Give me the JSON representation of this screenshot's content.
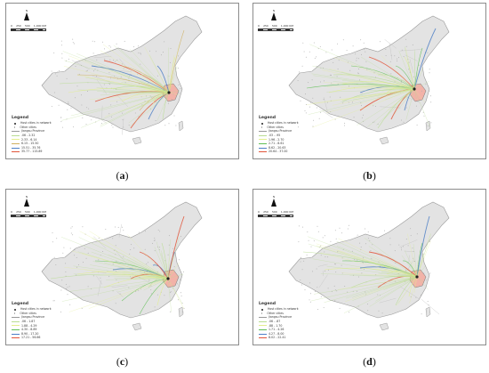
{
  "panels": [
    {
      "label": "a",
      "legend": {
        "title": "Legend",
        "node_label": "Host cities in network",
        "other_label": "Other cities",
        "border_label": "Jiangsu Province",
        "classes": [
          {
            "range": ".06 - 2.32",
            "color": "#b9dd92"
          },
          {
            "range": "2.33 - 6.14",
            "color": "#e3ee8e"
          },
          {
            "range": "6.15 - 15.50",
            "color": "#d0b060"
          },
          {
            "range": "15.51 - 35.76",
            "color": "#4e7fc6"
          },
          {
            "range": "35.77 - 115.89",
            "color": "#e2553a"
          }
        ]
      }
    },
    {
      "label": "b",
      "legend": {
        "title": "Legend",
        "node_label": "Host cities in network",
        "other_label": "Other cities",
        "border_label": "Jiangsu Province",
        "classes": [
          {
            "range": ".03 - .95",
            "color": "#b9dd92"
          },
          {
            "range": "1.96 - 2.70",
            "color": "#e3ee8e"
          },
          {
            "range": "2.71 - 8.61",
            "color": "#5fbf55"
          },
          {
            "range": "8.62 - 20.63",
            "color": "#4e7fc6"
          },
          {
            "range": "20.64 - 37.00",
            "color": "#e2553a"
          }
        ]
      }
    },
    {
      "label": "c",
      "legend": {
        "title": "Legend",
        "node_label": "Host cities in network",
        "other_label": "Other cities",
        "border_label": "Jiangsu Province",
        "classes": [
          {
            "range": ".06 - 1.87",
            "color": "#b9dd92"
          },
          {
            "range": "1.88 - 4.29",
            "color": "#e3ee8e"
          },
          {
            "range": "4.30 - 8.89",
            "color": "#5fbf55"
          },
          {
            "range": "8.90 - 17.20",
            "color": "#4e7fc6"
          },
          {
            "range": "17.21 - 56.66",
            "color": "#e2553a"
          }
        ]
      }
    },
    {
      "label": "d",
      "legend": {
        "title": "Legend",
        "node_label": "Host cities in network",
        "other_label": "Other cities",
        "border_label": "Jiangsu Province",
        "classes": [
          {
            "range": ".06 - .87",
            "color": "#b9dd92"
          },
          {
            "range": ".88 - 1.70",
            "color": "#e3ee8e"
          },
          {
            "range": "1.71 - 4.26",
            "color": "#5fbf55"
          },
          {
            "range": "4.27 - 8.00",
            "color": "#4e7fc6"
          },
          {
            "range": "8.02 - 22.41",
            "color": "#e2553a"
          }
        ]
      }
    }
  ],
  "map_common": {
    "north_letter": "N",
    "scale_ticks": [
      "0",
      "250",
      "500",
      "1,000 KM"
    ],
    "land_color": "#e3e3e3",
    "border_color": "#9a9a9a",
    "jiangsu_color": "#f2b2a8"
  }
}
